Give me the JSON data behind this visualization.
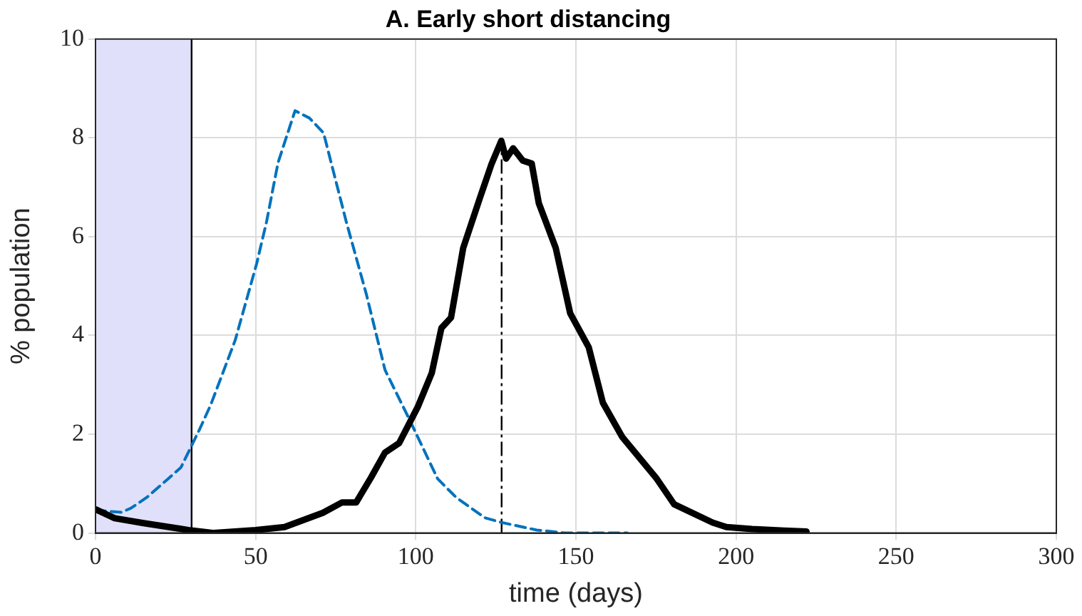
{
  "chart_data": {
    "type": "line",
    "title": "A. Early short distancing",
    "xlabel": "time (days)",
    "ylabel": "% population",
    "xlim": [
      0,
      300
    ],
    "xticks": [
      0,
      50,
      100,
      150,
      200,
      250,
      300
    ],
    "ylim": [
      0,
      10
    ],
    "yticks": [
      0,
      2,
      4,
      6,
      8,
      10
    ],
    "grid": true,
    "legend": false,
    "marker": "none",
    "series": [
      {
        "color": "#000000",
        "line_style": "solid",
        "x": [
          0,
          6,
          15,
          29,
          37,
          50,
          59,
          71,
          77,
          81.4,
          86,
          90.4,
          94.8,
          100.6,
          105,
          108,
          111,
          114.8,
          120,
          123.7,
          126.7,
          128.2,
          130.4,
          133.4,
          136.2,
          138.4,
          143.7,
          148.2,
          154,
          158.4,
          164.5,
          175,
          180.7,
          192.7,
          197,
          205,
          215,
          222
        ],
        "values": [
          0.48,
          0.3,
          0.2,
          0.06,
          0,
          0.06,
          0.12,
          0.41,
          0.62,
          0.62,
          1.12,
          1.63,
          1.82,
          2.55,
          3.24,
          4.15,
          4.36,
          5.77,
          6.78,
          7.48,
          7.94,
          7.58,
          7.79,
          7.54,
          7.48,
          6.68,
          5.77,
          4.45,
          3.76,
          2.64,
          1.94,
          1.12,
          0.58,
          0.21,
          0.12,
          0.08,
          0.05,
          0.03
        ]
      },
      {
        "color": "#0072bd",
        "line_style": "dashed",
        "x": [
          0,
          8,
          11,
          16,
          22.7,
          26.7,
          32.5,
          36,
          43.6,
          50.3,
          53.4,
          57,
          62.3,
          66.8,
          71.2,
          78.3,
          84.5,
          90.4,
          98,
          106.8,
          112.6,
          121.5,
          127,
          137.8,
          146.7,
          166
        ],
        "values": [
          0.46,
          0.42,
          0.5,
          0.72,
          1.1,
          1.33,
          2.1,
          2.6,
          3.9,
          5.45,
          6.3,
          7.5,
          8.55,
          8.4,
          8.1,
          6.3,
          4.85,
          3.3,
          2.3,
          1.1,
          0.72,
          0.31,
          0.21,
          0.06,
          0,
          0
        ]
      }
    ],
    "bands": [
      {
        "axis": "x",
        "from": 0,
        "to": 30,
        "color": "#e0e0fb"
      }
    ],
    "ref_lines": [
      {
        "axis": "x",
        "value": 126.8,
        "line_style": "dashed"
      },
      {
        "axis": "x",
        "value": 30,
        "line_style": "solid",
        "color": "#000000"
      }
    ]
  }
}
